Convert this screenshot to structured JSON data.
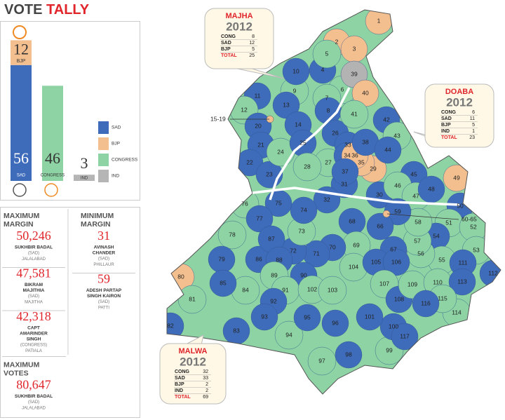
{
  "vote_tally": {
    "type": "bar",
    "title_1": "VOTE",
    "title_2": "TALLY",
    "bars": [
      [
        {
          "name": "SAD",
          "value": 56,
          "color": "#3f6cba"
        },
        {
          "name": "BJP",
          "value": 12,
          "color": "#f4bf8f"
        }
      ],
      [
        {
          "name": "CONGRESS",
          "value": 46,
          "color": "#8dd3a4"
        }
      ],
      [
        {
          "name": "IND",
          "value": 3,
          "color": "#b5b5b5"
        }
      ]
    ]
  },
  "margins": {
    "max_margin": {
      "heading": [
        "MAXIMUM",
        "MARGIN"
      ],
      "entries": [
        {
          "value": "50,246",
          "name": [
            "SUKHBIR BADAL"
          ],
          "party": "(SAD)",
          "seat": "JALALABAD"
        },
        {
          "value": "47,581",
          "name": [
            "BIKRAM",
            "MAJITHIA"
          ],
          "party": "(SAD)",
          "seat": "MAJITHA"
        },
        {
          "value": "42,318",
          "name": [
            "CAPT",
            "AMARINDER",
            "SINGH"
          ],
          "party": "(CONGRESS)",
          "seat": "PATIALA"
        }
      ]
    },
    "min_margin": {
      "heading": [
        "MINIMUM",
        "MARGIN"
      ],
      "entries": [
        {
          "value": "31",
          "name": [
            "AVINASH",
            "CHANDER"
          ],
          "party": "(SAD)",
          "seat": "PHILLAUR"
        },
        {
          "value": "59",
          "name": [
            "ADESH PARTAP",
            "SINGH KAIRON"
          ],
          "party": "(SAD)",
          "seat": "PATTI"
        }
      ]
    },
    "max_votes": {
      "heading": [
        "MAXIMUM",
        "VOTES"
      ],
      "entries": [
        {
          "value": "80,647",
          "name": [
            "SUKHBIR BADAL"
          ],
          "party": "(SAD)",
          "seat": "JALALABAD"
        }
      ]
    }
  },
  "regions": [
    {
      "name": "MAJHA",
      "year": "2012",
      "rows": [
        {
          "party": "CONG",
          "seats": 8
        },
        {
          "party": "SAD",
          "seats": 12
        },
        {
          "party": "BJP",
          "seats": 5
        }
      ],
      "total": {
        "label": "TOTAL",
        "seats": 25
      }
    },
    {
      "name": "DOABA",
      "year": "2012",
      "rows": [
        {
          "party": "CONG",
          "seats": 6
        },
        {
          "party": "SAD",
          "seats": 11
        },
        {
          "party": "BJP",
          "seats": 5
        },
        {
          "party": "IND",
          "seats": 1
        }
      ],
      "total": {
        "label": "TOTAL",
        "seats": 23
      }
    },
    {
      "name": "MALWA",
      "year": "2012",
      "rows": [
        {
          "party": "CONG",
          "seats": 32
        },
        {
          "party": "SAD",
          "seats": 33
        },
        {
          "party": "BJP",
          "seats": 2
        },
        {
          "party": "IND",
          "seats": 2
        }
      ],
      "total": {
        "label": "TOTAL",
        "seats": 69
      }
    }
  ],
  "map": {
    "party_colors": {
      "SAD": "#3f6cba",
      "CONG": "#8dd3a4",
      "BJP": "#f4bf8f",
      "IND": "#b3b3b3"
    },
    "callouts": [
      "15-19",
      "60-65"
    ],
    "constituencies": [
      {
        "label": "1",
        "party": "BJP"
      },
      {
        "label": "2",
        "party": "BJP"
      },
      {
        "label": "3",
        "party": "BJP"
      },
      {
        "label": "4",
        "party": "SAD"
      },
      {
        "label": "5",
        "party": "CONG"
      },
      {
        "label": "6",
        "party": "CONG"
      },
      {
        "label": "7",
        "party": "CONG"
      },
      {
        "label": "8",
        "party": "SAD"
      },
      {
        "label": "9",
        "party": "CONG"
      },
      {
        "label": "10",
        "party": "SAD"
      },
      {
        "label": "11",
        "party": "SAD"
      },
      {
        "label": "12",
        "party": "CONG"
      },
      {
        "label": "13",
        "party": "SAD"
      },
      {
        "label": "14",
        "party": "SAD"
      },
      {
        "label": "20",
        "party": "SAD"
      },
      {
        "label": "21",
        "party": "SAD"
      },
      {
        "label": "22",
        "party": "SAD"
      },
      {
        "label": "23",
        "party": "SAD"
      },
      {
        "label": "24",
        "party": "CONG"
      },
      {
        "label": "25",
        "party": "SAD"
      },
      {
        "label": "26",
        "party": "SAD"
      },
      {
        "label": "27",
        "party": "CONG"
      },
      {
        "label": "28",
        "party": "CONG"
      },
      {
        "label": "29",
        "party": "BJP"
      },
      {
        "label": "30",
        "party": "SAD"
      },
      {
        "label": "31",
        "party": "SAD"
      },
      {
        "label": "32",
        "party": "SAD"
      },
      {
        "label": "33",
        "party": "SAD"
      },
      {
        "label": "34",
        "party": "SAD"
      },
      {
        "label": "35",
        "party": "BJP"
      },
      {
        "label": "36",
        "party": "BJP"
      },
      {
        "label": "37",
        "party": "SAD"
      },
      {
        "label": "38",
        "party": "SAD"
      },
      {
        "label": "39",
        "party": "IND"
      },
      {
        "label": "40",
        "party": "BJP"
      },
      {
        "label": "41",
        "party": "CONG"
      },
      {
        "label": "42",
        "party": "SAD"
      },
      {
        "label": "43",
        "party": "CONG"
      },
      {
        "label": "44",
        "party": "SAD"
      },
      {
        "label": "45",
        "party": "SAD"
      },
      {
        "label": "46",
        "party": "CONG"
      },
      {
        "label": "47",
        "party": "CONG"
      },
      {
        "label": "48",
        "party": "SAD"
      },
      {
        "label": "49",
        "party": "BJP"
      },
      {
        "label": "50",
        "party": "SAD"
      },
      {
        "label": "51",
        "party": "CONG"
      },
      {
        "label": "52",
        "party": "CONG"
      },
      {
        "label": "53",
        "party": "CONG"
      },
      {
        "label": "54",
        "party": "SAD"
      },
      {
        "label": "55",
        "party": "CONG"
      },
      {
        "label": "56",
        "party": "CONG"
      },
      {
        "label": "57",
        "party": "CONG"
      },
      {
        "label": "58",
        "party": "CONG"
      },
      {
        "label": "59",
        "party": "SAD"
      },
      {
        "label": "66",
        "party": "SAD"
      },
      {
        "label": "67",
        "party": "SAD"
      },
      {
        "label": "68",
        "party": "SAD"
      },
      {
        "label": "69",
        "party": "CONG"
      },
      {
        "label": "70",
        "party": "SAD"
      },
      {
        "label": "71",
        "party": "SAD"
      },
      {
        "label": "72",
        "party": "SAD"
      },
      {
        "label": "73",
        "party": "CONG"
      },
      {
        "label": "74",
        "party": "SAD"
      },
      {
        "label": "75",
        "party": "SAD"
      },
      {
        "label": "76",
        "party": "CONG"
      },
      {
        "label": "77",
        "party": "SAD"
      },
      {
        "label": "78",
        "party": "CONG"
      },
      {
        "label": "79",
        "party": "SAD"
      },
      {
        "label": "80",
        "party": "BJP"
      },
      {
        "label": "81",
        "party": "CONG"
      },
      {
        "label": "82",
        "party": "SAD"
      },
      {
        "label": "83",
        "party": "SAD"
      },
      {
        "label": "84",
        "party": "CONG"
      },
      {
        "label": "85",
        "party": "SAD"
      },
      {
        "label": "86",
        "party": "SAD"
      },
      {
        "label": "87",
        "party": "SAD"
      },
      {
        "label": "88",
        "party": "SAD"
      },
      {
        "label": "89",
        "party": "CONG"
      },
      {
        "label": "90",
        "party": "SAD"
      },
      {
        "label": "91",
        "party": "CONG"
      },
      {
        "label": "92",
        "party": "SAD"
      },
      {
        "label": "93",
        "party": "SAD"
      },
      {
        "label": "94",
        "party": "CONG"
      },
      {
        "label": "95",
        "party": "SAD"
      },
      {
        "label": "96",
        "party": "SAD"
      },
      {
        "label": "97",
        "party": "CONG"
      },
      {
        "label": "98",
        "party": "SAD"
      },
      {
        "label": "99",
        "party": "CONG"
      },
      {
        "label": "100",
        "party": "SAD"
      },
      {
        "label": "101",
        "party": "SAD"
      },
      {
        "label": "102",
        "party": "CONG"
      },
      {
        "label": "103",
        "party": "CONG"
      },
      {
        "label": "104",
        "party": "CONG"
      },
      {
        "label": "105",
        "party": "SAD"
      },
      {
        "label": "106",
        "party": "SAD"
      },
      {
        "label": "107",
        "party": "CONG"
      },
      {
        "label": "108",
        "party": "SAD"
      },
      {
        "label": "109",
        "party": "CONG"
      },
      {
        "label": "110",
        "party": "CONG"
      },
      {
        "label": "111",
        "party": "SAD"
      },
      {
        "label": "112",
        "party": "SAD"
      },
      {
        "label": "113",
        "party": "SAD"
      },
      {
        "label": "114",
        "party": "CONG"
      },
      {
        "label": "115",
        "party": "CONG"
      },
      {
        "label": "116",
        "party": "SAD"
      },
      {
        "label": "117",
        "party": "SAD"
      }
    ]
  }
}
